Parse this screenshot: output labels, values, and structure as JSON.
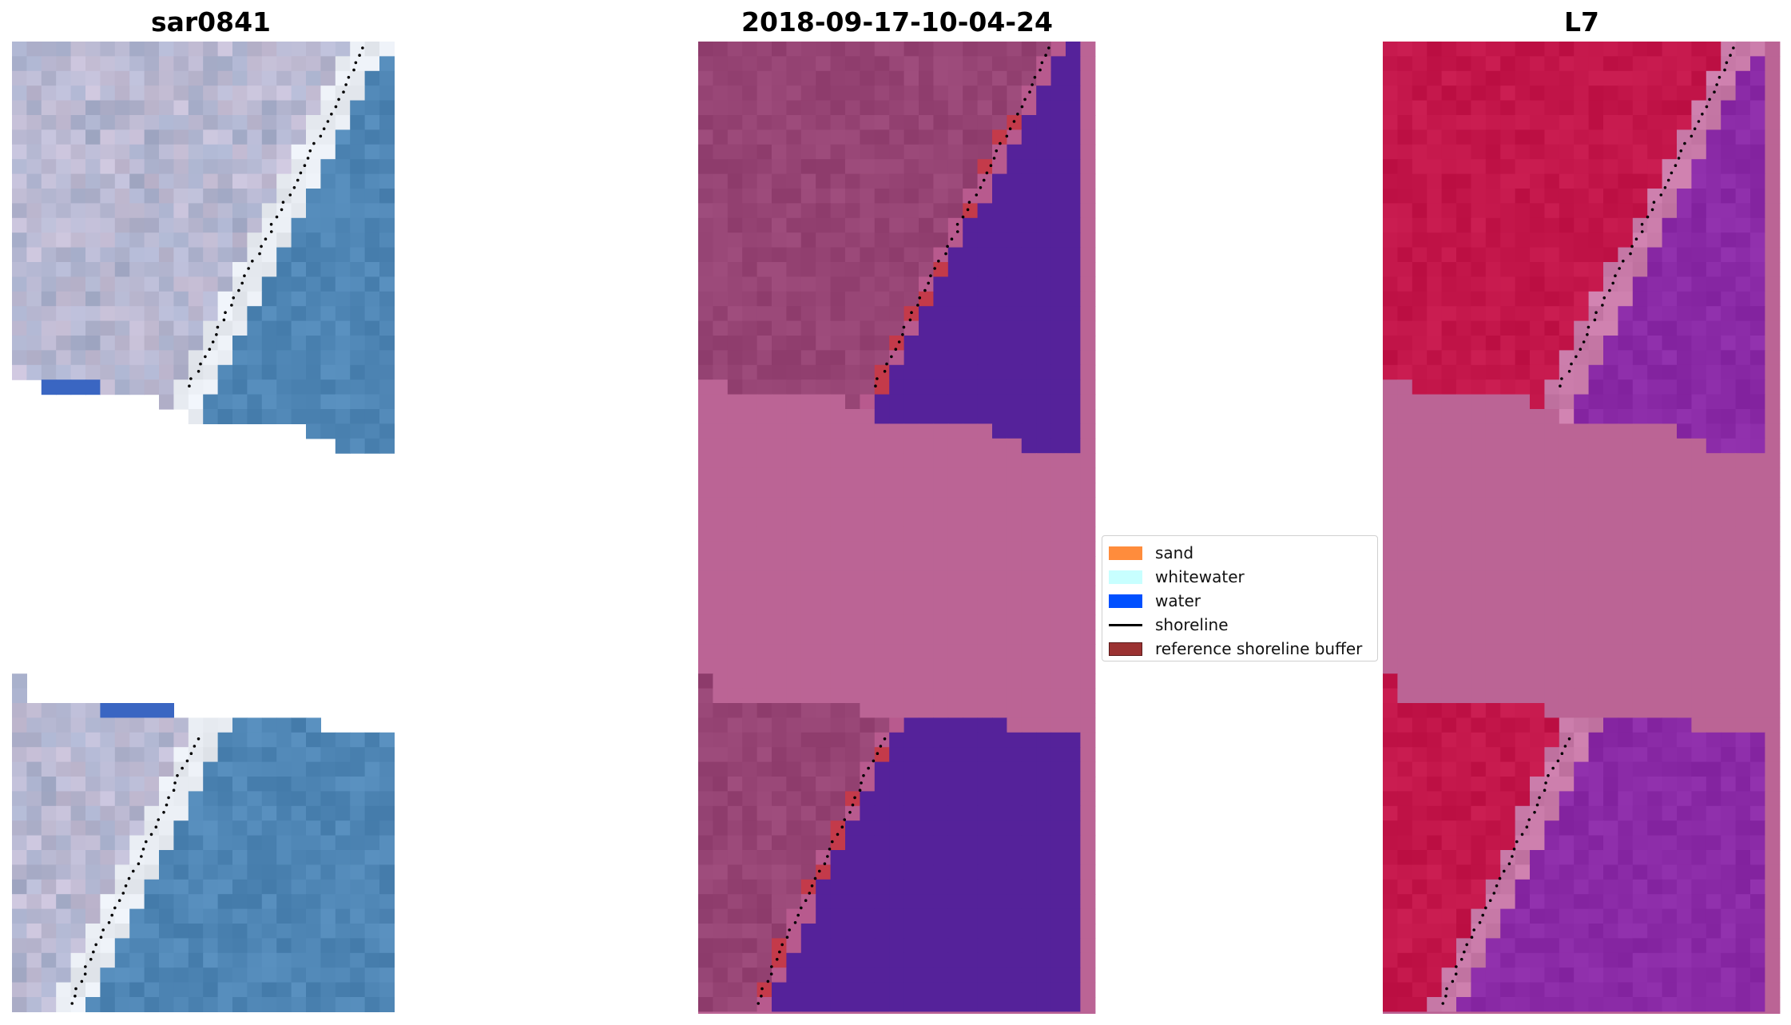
{
  "panels": [
    {
      "title": "sar0841",
      "kind": "rgb"
    },
    {
      "title": "2018-09-17-10-04-24",
      "kind": "classification"
    },
    {
      "title": "L7",
      "kind": "mndwi"
    }
  ],
  "colors": {
    "sand": "#ff8c3c",
    "whitewater": "#c8ffff",
    "water": "#0050ff",
    "shoreline": "#000000",
    "buffer": "#9b3232",
    "nodata_pink": "#bb6495",
    "class_water_purple": "#55229a",
    "class_land_mauve": "#964474",
    "l7_land_red": "#c3164a",
    "l7_water_purple": "#8a2aa6"
  },
  "legend": {
    "items": [
      {
        "label": "sand",
        "type": "patch",
        "color": "#ff8c3c"
      },
      {
        "label": "whitewater",
        "type": "patch",
        "color": "#c8ffff"
      },
      {
        "label": "water",
        "type": "patch",
        "color": "#0050ff"
      },
      {
        "label": "shoreline",
        "type": "line",
        "color": "#000000"
      },
      {
        "label": "reference shoreline buffer",
        "type": "patch",
        "color": "#9b3232"
      }
    ]
  },
  "chart_data": {
    "type": "heatmap",
    "grid": {
      "columns": 26,
      "rows": 66
    },
    "top_valid_rows": [
      0,
      27
    ],
    "bottom_valid_rows": [
      43,
      65
    ],
    "legend_placement": "center",
    "grid_lines": false
  }
}
